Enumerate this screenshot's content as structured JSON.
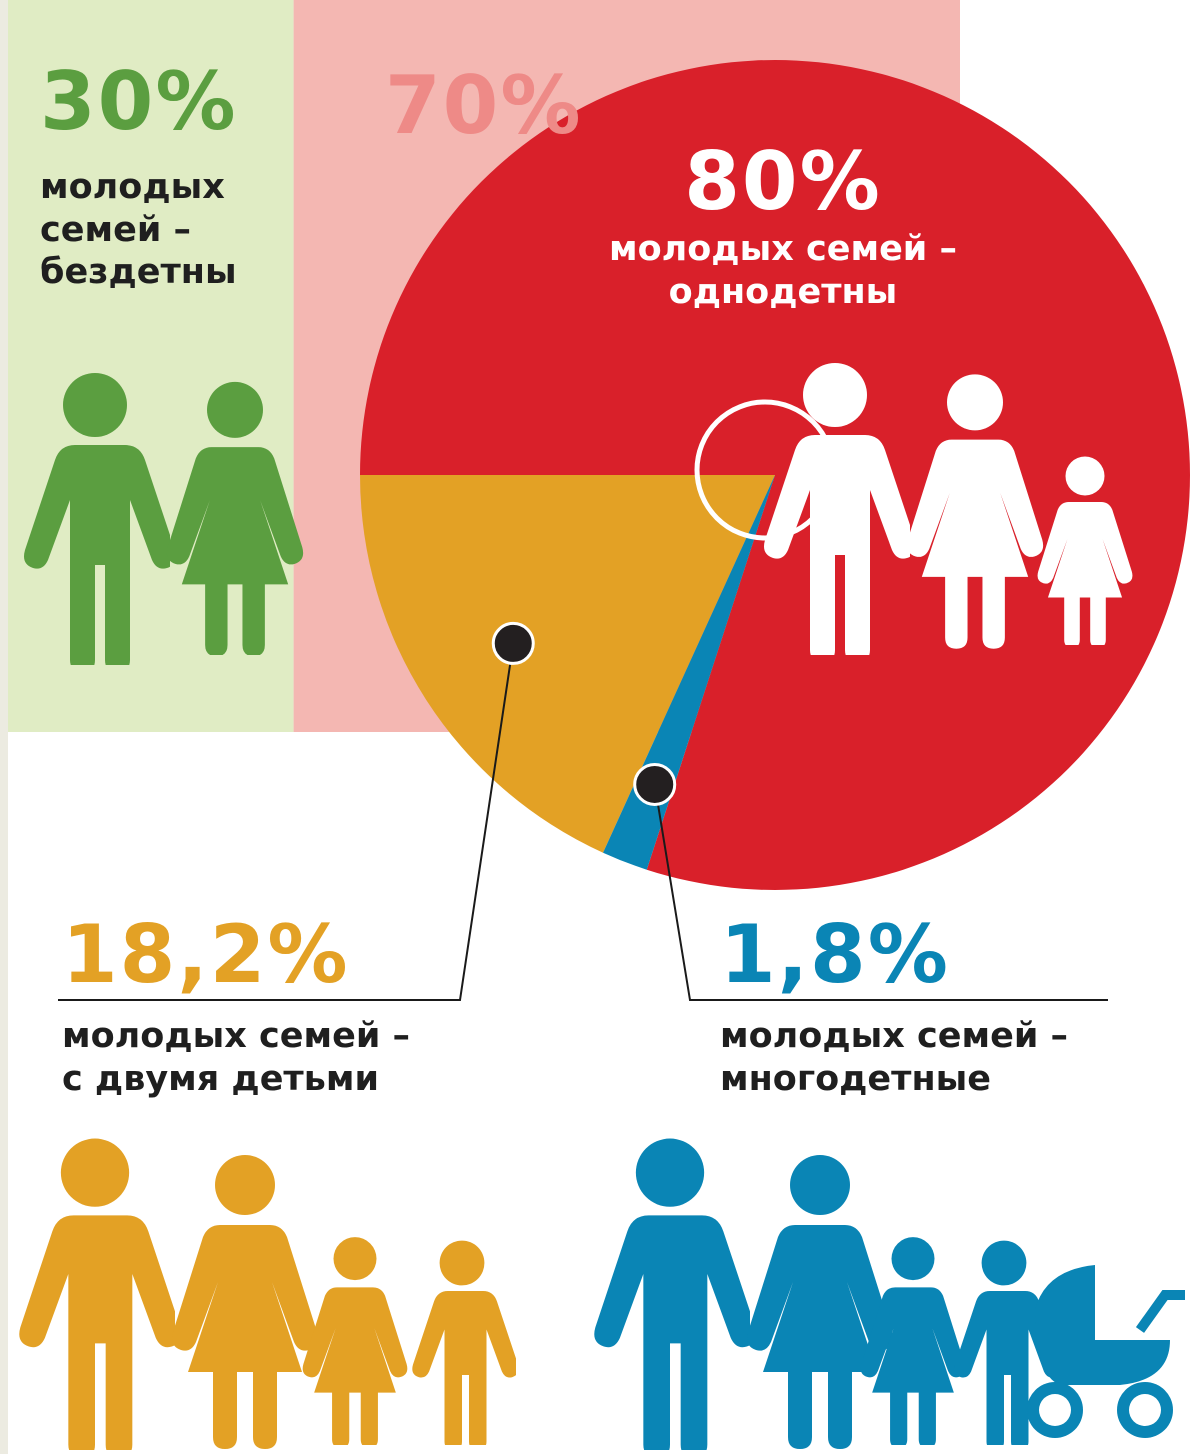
{
  "chart_data": {
    "type": "pie",
    "categories": [
      "молодых семей –\nоднодетны",
      "молодых семей –\nс двумя детьми",
      "молодых семей –\nмногодетные"
    ],
    "values": [
      80,
      18.2,
      1.8
    ],
    "value_labels": [
      "80%",
      "18,2%",
      "1,8%"
    ],
    "colors": [
      "#d9202a",
      "#e3a125",
      "#0a85b5"
    ]
  },
  "split": {
    "values": [
      30,
      70
    ],
    "value_labels": [
      "30%",
      "70%"
    ],
    "label": "молодых\nсемей –\nбездетны",
    "colors": [
      "#e0ecc4",
      "#f4b7b2"
    ]
  }
}
